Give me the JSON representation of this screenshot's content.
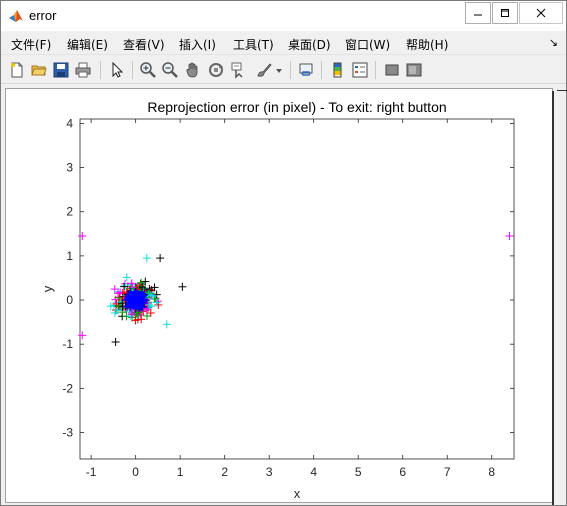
{
  "window": {
    "title": "error",
    "controls": {
      "minimize": "minimize",
      "maximize": "maximize",
      "close": "close"
    }
  },
  "menu": {
    "items": [
      "文件(F)",
      "编辑(E)",
      "查看(V)",
      "插入(I)",
      "工具(T)",
      "桌面(D)",
      "窗口(W)",
      "帮助(H)"
    ],
    "overflow_arrow": "↘"
  },
  "toolbar": {
    "icons": [
      "new-file-icon",
      "open-folder-icon",
      "save-icon",
      "print-icon",
      "pointer-icon",
      "zoom-in-icon",
      "zoom-out-icon",
      "pan-hand-icon",
      "rotate-3d-icon",
      "data-cursor-icon",
      "brush-icon",
      "dropdown-arrow-icon",
      "link-plot-icon",
      "colorbar-icon",
      "legend-icon",
      "hide-plot-tools-icon",
      "show-plot-tools-icon"
    ]
  },
  "chart_data": {
    "type": "scatter",
    "title": "Reprojection error (in pixel) - To exit: right button",
    "xlabel": "x",
    "ylabel": "y",
    "xlim": [
      -1.25,
      8.5
    ],
    "ylim": [
      -3.6,
      4.1
    ],
    "xticks": [
      "-1",
      "0",
      "1",
      "2",
      "3",
      "4",
      "5",
      "6",
      "7",
      "8"
    ],
    "yticks": [
      "-3",
      "-2",
      "-1",
      "0",
      "1",
      "2",
      "3",
      "4"
    ],
    "marker": "+",
    "series_colors": [
      "#0000ff",
      "#ff00ff",
      "#000000",
      "#00e5e5",
      "#ff0000",
      "#00a000"
    ],
    "outliers": [
      {
        "x": -1.2,
        "y": 1.45,
        "color": "#ff00ff"
      },
      {
        "x": 8.4,
        "y": 1.45,
        "color": "#ff00ff"
      },
      {
        "x": -1.2,
        "y": -0.8,
        "color": "#ff00ff"
      },
      {
        "x": 1.05,
        "y": 0.3,
        "color": "#000000"
      },
      {
        "x": 0.55,
        "y": 0.95,
        "color": "#000000"
      },
      {
        "x": 0.7,
        "y": -0.55,
        "color": "#00e5e5"
      },
      {
        "x": -0.45,
        "y": -0.95,
        "color": "#000000"
      },
      {
        "x": 0.25,
        "y": 0.95,
        "color": "#00e5e5"
      }
    ]
  }
}
